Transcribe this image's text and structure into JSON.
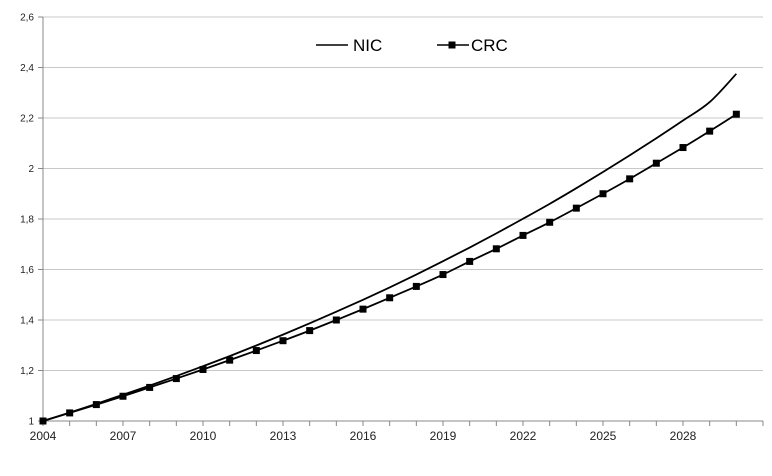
{
  "chart_data": {
    "type": "line",
    "title": "",
    "xlabel": "",
    "ylabel": "",
    "xlim": [
      2004,
      2031
    ],
    "ylim": [
      1,
      2.6
    ],
    "grid": true,
    "legend_position": "top-center",
    "y_ticks": [
      {
        "value": 1,
        "label": "1"
      },
      {
        "value": 1.2,
        "label": "1,2"
      },
      {
        "value": 1.4,
        "label": "1,4"
      },
      {
        "value": 1.6,
        "label": "1,6"
      },
      {
        "value": 1.8,
        "label": "1,8"
      },
      {
        "value": 2,
        "label": "2"
      },
      {
        "value": 2.2,
        "label": "2,2"
      },
      {
        "value": 2.4,
        "label": "2,4"
      },
      {
        "value": 2.6,
        "label": "2,6"
      }
    ],
    "x_ticks": [
      {
        "value": 2004,
        "label": "2004"
      },
      {
        "value": 2007,
        "label": "2007"
      },
      {
        "value": 2010,
        "label": "2010"
      },
      {
        "value": 2013,
        "label": "2013"
      },
      {
        "value": 2016,
        "label": "2016"
      },
      {
        "value": 2019,
        "label": "2019"
      },
      {
        "value": 2022,
        "label": "2022"
      },
      {
        "value": 2025,
        "label": "2025"
      },
      {
        "value": 2028,
        "label": "2028"
      }
    ],
    "series": [
      {
        "name": "NIC",
        "marker": "none",
        "color": "#000000",
        "x": [
          2004,
          2005,
          2006,
          2007,
          2008,
          2009,
          2010,
          2011,
          2012,
          2013,
          2014,
          2015,
          2016,
          2017,
          2018,
          2019,
          2020,
          2021,
          2022,
          2023,
          2024,
          2025,
          2026,
          2027,
          2028,
          2029,
          2030
        ],
        "y": [
          1.0,
          1.033,
          1.068,
          1.104,
          1.14,
          1.178,
          1.217,
          1.257,
          1.299,
          1.342,
          1.387,
          1.433,
          1.48,
          1.529,
          1.58,
          1.633,
          1.687,
          1.743,
          1.801,
          1.86,
          1.922,
          1.986,
          2.052,
          2.12,
          2.19,
          2.263,
          2.375
        ]
      },
      {
        "name": "CRC",
        "marker": "square",
        "color": "#000000",
        "x": [
          2004,
          2005,
          2006,
          2007,
          2008,
          2009,
          2010,
          2011,
          2012,
          2013,
          2014,
          2015,
          2016,
          2017,
          2018,
          2019,
          2020,
          2021,
          2022,
          2023,
          2024,
          2025,
          2026,
          2027,
          2028,
          2029,
          2030
        ],
        "y": [
          1.0,
          1.032,
          1.065,
          1.098,
          1.133,
          1.168,
          1.204,
          1.241,
          1.279,
          1.318,
          1.358,
          1.4,
          1.443,
          1.488,
          1.533,
          1.58,
          1.632,
          1.682,
          1.735,
          1.787,
          1.843,
          1.9,
          1.959,
          2.021,
          2.083,
          2.148,
          2.215
        ]
      }
    ]
  }
}
